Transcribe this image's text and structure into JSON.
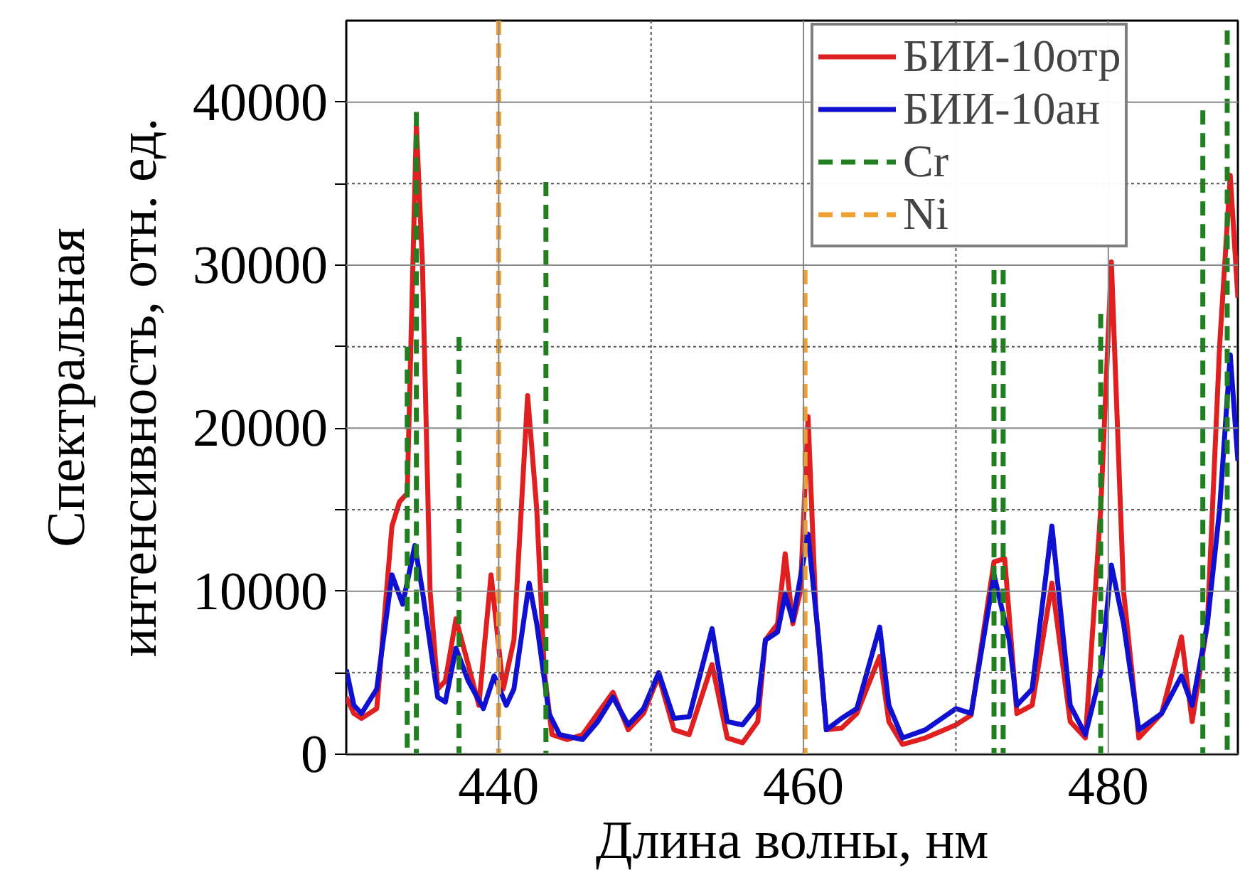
{
  "chart_data": {
    "type": "line",
    "xlabel": "Длина волны, нм",
    "ylabel": "Спектральная\nинтенсивность, отн. ед.",
    "xlim": [
      430,
      488.5
    ],
    "ylim": [
      0,
      45000
    ],
    "xticks": [
      {
        "value": 440,
        "label": "440"
      },
      {
        "value": 450,
        "label": null
      },
      {
        "value": 460,
        "label": "460"
      },
      {
        "value": 470,
        "label": null
      },
      {
        "value": 480,
        "label": "480"
      }
    ],
    "yticks": [
      0,
      {
        "value": 5000,
        "label": null
      },
      10000,
      {
        "value": 15000,
        "label": null
      },
      20000,
      {
        "value": 25000,
        "label": null
      },
      30000,
      {
        "value": 35000,
        "label": null
      },
      40000
    ],
    "grid": true,
    "legend": "top right",
    "line_style": "solid",
    "series": [
      {
        "name": "БИИ-10отр",
        "color": "#e02020",
        "x": [
          430,
          430.5,
          431,
          432,
          433,
          433.5,
          434,
          434.6,
          435,
          435.5,
          436,
          436.5,
          437.2,
          438,
          438.7,
          439.5,
          440.3,
          441,
          441.9,
          442.5,
          443,
          443.5,
          444.5,
          445.5,
          446.5,
          447.5,
          448.5,
          449.5,
          450.5,
          451.5,
          452.5,
          454,
          455,
          456,
          457,
          457.5,
          458.3,
          458.8,
          459.3,
          459.8,
          460.3,
          460.8,
          461.5,
          462.5,
          463.5,
          465,
          465.6,
          466.5,
          468,
          470,
          471,
          472.5,
          473.2,
          474,
          475,
          476.3,
          477.5,
          478.5,
          479.5,
          480.2,
          481,
          482,
          483.5,
          484.8,
          485.5,
          486.5,
          487.3,
          488,
          488.5
        ],
        "values": [
          3500,
          2500,
          2200,
          2800,
          14000,
          15500,
          16000,
          38600,
          30000,
          10000,
          4000,
          4500,
          8300,
          5500,
          3000,
          11000,
          4000,
          7000,
          22000,
          15000,
          5000,
          1200,
          900,
          1200,
          2500,
          3800,
          1500,
          2500,
          4800,
          1500,
          1200,
          5500,
          1000,
          700,
          2000,
          7000,
          8000,
          12300,
          8000,
          10000,
          20700,
          9000,
          1500,
          1600,
          2500,
          6000,
          2000,
          600,
          1000,
          1800,
          2400,
          11800,
          12000,
          2500,
          3000,
          10500,
          2000,
          1000,
          15000,
          30200,
          10000,
          1000,
          2500,
          7200,
          2000,
          8000,
          25000,
          35500,
          28000
        ]
      },
      {
        "name": "БИИ-10ан",
        "color": "#1010d0",
        "x": [
          430,
          430.5,
          431,
          432,
          433,
          433.7,
          434.5,
          435,
          436,
          436.5,
          437.2,
          438,
          439,
          439.7,
          440.5,
          441,
          442,
          442.5,
          443.3,
          444,
          445.5,
          446.5,
          447.5,
          448.5,
          449.5,
          450.5,
          451.5,
          452.5,
          454,
          455,
          456,
          457,
          457.5,
          458.3,
          458.8,
          459.3,
          460.3,
          461,
          461.5,
          462.5,
          463.5,
          465,
          465.6,
          466.5,
          468,
          470,
          471,
          472.5,
          473.5,
          474,
          475,
          476.3,
          477.5,
          478.5,
          479.5,
          480.2,
          481,
          482,
          483.5,
          484.8,
          485.5,
          486.5,
          487.3,
          488,
          488.5
        ],
        "values": [
          5200,
          3000,
          2500,
          4000,
          11000,
          9200,
          12800,
          10000,
          3500,
          3200,
          6500,
          4500,
          2800,
          4800,
          3000,
          4000,
          10500,
          8000,
          2500,
          1200,
          900,
          2000,
          3500,
          1800,
          2800,
          5000,
          2200,
          2300,
          7700,
          2000,
          1800,
          3000,
          7000,
          7500,
          9800,
          8200,
          13500,
          7000,
          1500,
          2200,
          2800,
          7800,
          3000,
          1000,
          1500,
          2800,
          2500,
          11000,
          7000,
          3000,
          4000,
          14000,
          3000,
          1200,
          5000,
          11600,
          8000,
          1500,
          2500,
          4800,
          3000,
          8000,
          15000,
          24500,
          18000
        ]
      },
      {
        "name": "Cr",
        "color": "#208020",
        "line_style": "dashed",
        "x": [
          434.0,
          434.0
        ],
        "values": [
          25000,
          0
        ]
      },
      {
        "color": "#208020",
        "line_style": "dashed",
        "x": [
          434.6,
          434.6
        ],
        "values": [
          39400,
          0
        ]
      },
      {
        "color": "#208020",
        "line_style": "dashed",
        "x": [
          437.4,
          437.4
        ],
        "values": [
          25600,
          0
        ]
      },
      {
        "color": "#208020",
        "line_style": "dashed",
        "x": [
          443.1,
          443.1
        ],
        "values": [
          35100,
          0
        ]
      },
      {
        "color": "#208020",
        "line_style": "dashed",
        "x": [
          472.5,
          472.5
        ],
        "values": [
          29700,
          0
        ]
      },
      {
        "color": "#208020",
        "line_style": "dashed",
        "x": [
          473.1,
          473.1
        ],
        "values": [
          29700,
          0
        ]
      },
      {
        "color": "#208020",
        "line_style": "dashed",
        "x": [
          479.5,
          479.5
        ],
        "values": [
          27000,
          0
        ]
      },
      {
        "color": "#208020",
        "line_style": "dashed",
        "x": [
          486.2,
          486.2
        ],
        "values": [
          39500,
          0
        ]
      },
      {
        "color": "#208020",
        "line_style": "dashed",
        "x": [
          487.8,
          487.8
        ],
        "values": [
          44400,
          0
        ]
      },
      {
        "name": "Ni",
        "color": "#f0a030",
        "line_style": "dashed",
        "x": [
          440.0,
          440.0
        ],
        "values": [
          45000,
          0
        ]
      },
      {
        "color": "#f0a030",
        "line_style": "dashed",
        "x": [
          460.1,
          460.1
        ],
        "values": [
          29700,
          0
        ]
      }
    ]
  }
}
